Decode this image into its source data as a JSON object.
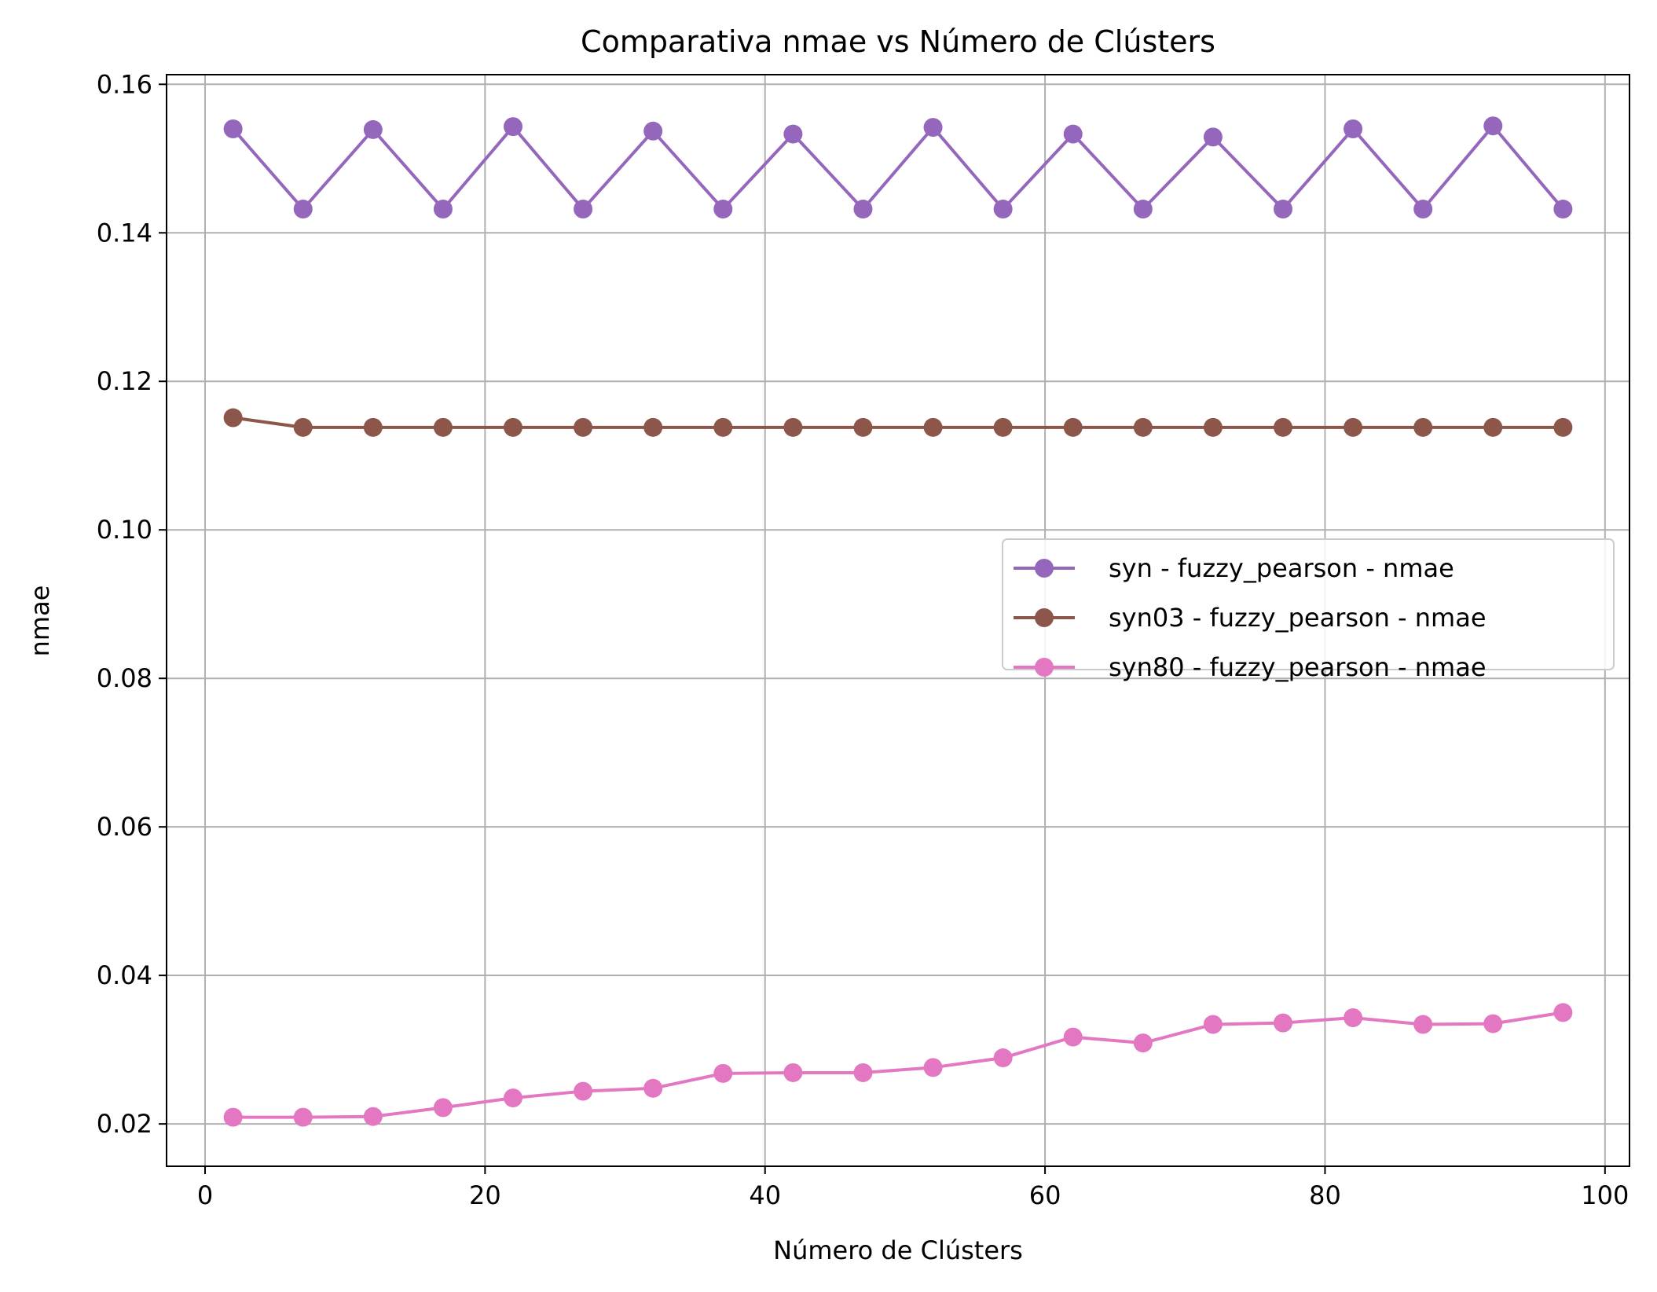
{
  "chart_data": {
    "type": "line",
    "title": "Comparativa nmae vs Número de Clústers",
    "xlabel": "Número de Clústers",
    "ylabel": "nmae",
    "xlim": [
      -2.75,
      101.75
    ],
    "ylim": [
      0.0143,
      0.1613
    ],
    "xticks": [
      0,
      20,
      40,
      60,
      80,
      100
    ],
    "xtick_labels": [
      "0",
      "20",
      "40",
      "60",
      "80",
      "100"
    ],
    "yticks": [
      0.02,
      0.04,
      0.06,
      0.08,
      0.1,
      0.12,
      0.14,
      0.16
    ],
    "ytick_labels": [
      "0.02",
      "0.04",
      "0.06",
      "0.08",
      "0.10",
      "0.12",
      "0.14",
      "0.16"
    ],
    "grid": true,
    "legend_position": "center-right",
    "x": [
      2,
      7,
      12,
      17,
      22,
      27,
      32,
      37,
      42,
      47,
      52,
      57,
      62,
      67,
      72,
      77,
      82,
      87,
      92,
      97
    ],
    "series": [
      {
        "name": "syn - fuzzy_pearson - nmae",
        "color": "#9467bd",
        "marker": "circle",
        "values": [
          0.154,
          0.1432,
          0.1539,
          0.1432,
          0.1543,
          0.1432,
          0.1537,
          0.1432,
          0.1533,
          0.1432,
          0.1542,
          0.1432,
          0.1533,
          0.1432,
          0.1529,
          0.1432,
          0.154,
          0.1432,
          0.1544,
          0.1432
        ]
      },
      {
        "name": "syn03 - fuzzy_pearson - nmae",
        "color": "#8c564b",
        "marker": "circle",
        "values": [
          0.1151,
          0.1138,
          0.1138,
          0.1138,
          0.1138,
          0.1138,
          0.1138,
          0.1138,
          0.1138,
          0.1138,
          0.1138,
          0.1138,
          0.1138,
          0.1138,
          0.1138,
          0.1138,
          0.1138,
          0.1138,
          0.1138,
          0.1138
        ]
      },
      {
        "name": "syn80 - fuzzy_pearson - nmae",
        "color": "#e377c2",
        "marker": "circle",
        "values": [
          0.0209,
          0.0209,
          0.021,
          0.0222,
          0.0235,
          0.0244,
          0.0248,
          0.0268,
          0.0269,
          0.0269,
          0.0276,
          0.0289,
          0.0317,
          0.0309,
          0.0334,
          0.0336,
          0.0343,
          0.0334,
          0.0335,
          0.035
        ]
      }
    ]
  }
}
